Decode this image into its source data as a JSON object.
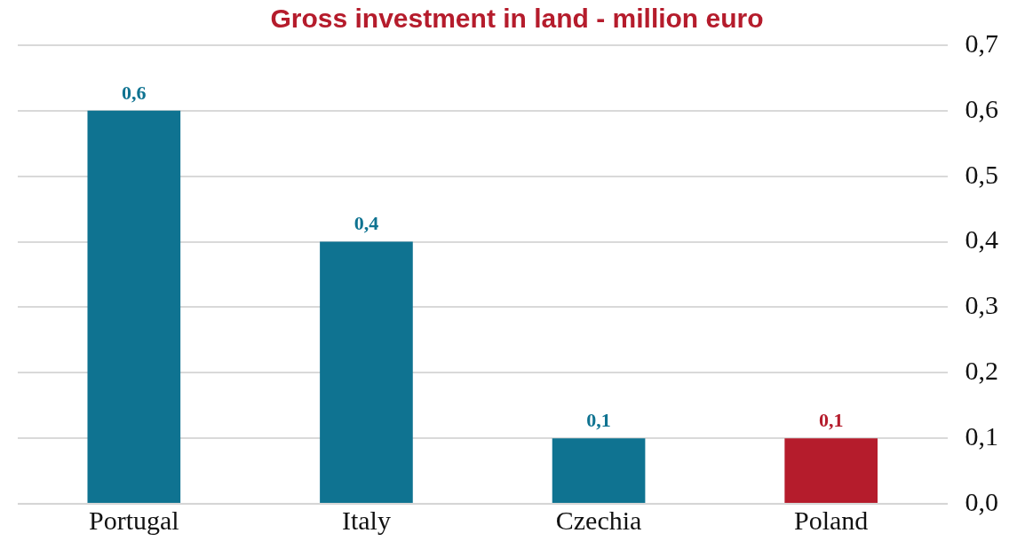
{
  "chart_data": {
    "type": "bar",
    "title": "Gross investment in land - million euro",
    "categories": [
      "Portugal",
      "Italy",
      "Czechia",
      "Poland"
    ],
    "values": [
      0.6,
      0.4,
      0.1,
      0.1
    ],
    "colors": [
      "#0f7391",
      "#0f7391",
      "#0f7391",
      "#b51c2c"
    ],
    "value_labels": [
      "0,6",
      "0,4",
      "0,1",
      "0,1"
    ],
    "ylim": [
      0,
      0.7
    ],
    "yticks": [
      {
        "value": 0,
        "label": "0,0"
      },
      {
        "value": 0.1,
        "label": "0,1"
      },
      {
        "value": 0.2,
        "label": "0,2"
      },
      {
        "value": 0.3,
        "label": "0,3"
      },
      {
        "value": 0.4,
        "label": "0,4"
      },
      {
        "value": 0.5,
        "label": "0,5"
      },
      {
        "value": 0.6,
        "label": "0,6"
      },
      {
        "value": 0.7,
        "label": "0,7"
      }
    ],
    "grid": "y",
    "legend": false
  }
}
